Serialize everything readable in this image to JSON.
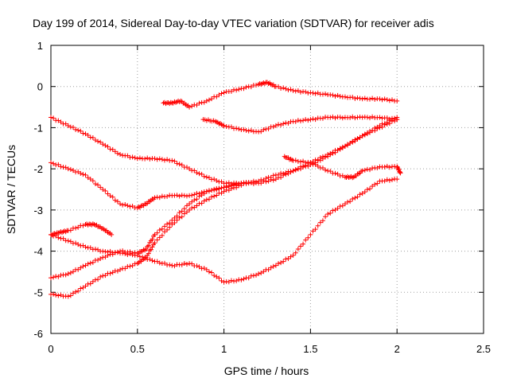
{
  "chart_data": {
    "type": "scatter",
    "title": "Day 199 of 2014, Sidereal Day-to-day VTEC variation (SDTVAR) for receiver adis",
    "xlabel": "GPS time / hours",
    "ylabel": "SDTVAR / TECUs",
    "xlim": [
      0,
      2.5
    ],
    "ylim": [
      -6,
      1
    ],
    "xticks": [
      0,
      0.5,
      1,
      1.5,
      2,
      2.5
    ],
    "xtick_labels": [
      "0",
      "0.5",
      "1",
      "1.5",
      "2",
      "2.5"
    ],
    "yticks": [
      -6,
      -5,
      -4,
      -3,
      -2,
      -1,
      0,
      1
    ],
    "ytick_labels": [
      "-6",
      "-5",
      "-4",
      "-3",
      "-2",
      "-1",
      "0",
      "1"
    ],
    "grid": true,
    "marker": "+",
    "color": "#ff0000",
    "series": [
      {
        "name": "s1",
        "points": [
          [
            0.0,
            -0.75
          ],
          [
            0.1,
            -0.95
          ],
          [
            0.2,
            -1.15
          ],
          [
            0.3,
            -1.4
          ],
          [
            0.4,
            -1.65
          ],
          [
            0.5,
            -1.75
          ],
          [
            0.6,
            -1.75
          ],
          [
            0.7,
            -1.8
          ],
          [
            0.8,
            -2.0
          ],
          [
            0.9,
            -2.2
          ],
          [
            1.0,
            -2.35
          ],
          [
            1.1,
            -2.35
          ]
        ]
      },
      {
        "name": "s2",
        "points": [
          [
            0.0,
            -1.85
          ],
          [
            0.1,
            -2.0
          ],
          [
            0.2,
            -2.15
          ],
          [
            0.3,
            -2.5
          ],
          [
            0.4,
            -2.85
          ],
          [
            0.5,
            -2.95
          ],
          [
            0.55,
            -2.85
          ],
          [
            0.6,
            -2.7
          ],
          [
            0.7,
            -2.65
          ],
          [
            0.8,
            -2.65
          ],
          [
            0.9,
            -2.55
          ],
          [
            1.0,
            -2.45
          ],
          [
            1.1,
            -2.35
          ],
          [
            1.2,
            -2.35
          ],
          [
            1.3,
            -2.25
          ],
          [
            1.4,
            -2.05
          ],
          [
            1.5,
            -1.9
          ],
          [
            1.6,
            -1.7
          ],
          [
            1.7,
            -1.45
          ],
          [
            1.8,
            -1.2
          ],
          [
            1.9,
            -1.0
          ],
          [
            2.0,
            -0.8
          ]
        ]
      },
      {
        "name": "s3",
        "points": [
          [
            0.0,
            -3.6
          ],
          [
            0.05,
            -3.55
          ],
          [
            0.1,
            -3.5
          ],
          [
            0.2,
            -3.35
          ],
          [
            0.25,
            -3.35
          ],
          [
            0.3,
            -3.45
          ],
          [
            0.35,
            -3.6
          ]
        ]
      },
      {
        "name": "s4",
        "points": [
          [
            0.0,
            -3.6
          ],
          [
            0.1,
            -3.75
          ],
          [
            0.2,
            -3.9
          ],
          [
            0.3,
            -4.0
          ],
          [
            0.4,
            -4.05
          ],
          [
            0.5,
            -4.1
          ],
          [
            0.6,
            -4.25
          ],
          [
            0.7,
            -4.35
          ],
          [
            0.8,
            -4.3
          ],
          [
            0.9,
            -4.45
          ],
          [
            1.0,
            -4.75
          ],
          [
            1.1,
            -4.7
          ],
          [
            1.2,
            -4.55
          ],
          [
            1.3,
            -4.35
          ],
          [
            1.4,
            -4.1
          ],
          [
            1.5,
            -3.6
          ],
          [
            1.6,
            -3.1
          ],
          [
            1.7,
            -2.85
          ],
          [
            1.8,
            -2.6
          ],
          [
            1.9,
            -2.3
          ],
          [
            2.0,
            -2.25
          ]
        ]
      },
      {
        "name": "s5",
        "points": [
          [
            0.0,
            -4.65
          ],
          [
            0.1,
            -4.55
          ],
          [
            0.2,
            -4.35
          ],
          [
            0.3,
            -4.15
          ],
          [
            0.4,
            -4.0
          ],
          [
            0.5,
            -4.05
          ],
          [
            0.55,
            -3.95
          ],
          [
            0.6,
            -3.6
          ],
          [
            0.7,
            -3.25
          ],
          [
            0.8,
            -2.85
          ],
          [
            0.9,
            -2.55
          ],
          [
            1.0,
            -2.45
          ],
          [
            1.1,
            -2.35
          ],
          [
            1.2,
            -2.3
          ],
          [
            1.3,
            -2.15
          ],
          [
            1.4,
            -2.05
          ],
          [
            1.5,
            -1.85
          ],
          [
            1.6,
            -1.65
          ],
          [
            1.7,
            -1.45
          ],
          [
            1.8,
            -1.2
          ],
          [
            1.9,
            -0.95
          ],
          [
            2.0,
            -0.75
          ]
        ]
      },
      {
        "name": "s6",
        "points": [
          [
            0.0,
            -5.05
          ],
          [
            0.1,
            -5.1
          ],
          [
            0.2,
            -4.85
          ],
          [
            0.3,
            -4.6
          ],
          [
            0.4,
            -4.45
          ],
          [
            0.5,
            -4.3
          ],
          [
            0.55,
            -4.15
          ],
          [
            0.6,
            -3.8
          ],
          [
            0.7,
            -3.35
          ],
          [
            0.8,
            -3.0
          ],
          [
            0.9,
            -2.75
          ],
          [
            1.0,
            -2.55
          ],
          [
            1.1,
            -2.4
          ]
        ]
      },
      {
        "name": "s7",
        "points": [
          [
            0.65,
            -0.4
          ],
          [
            0.7,
            -0.4
          ],
          [
            0.75,
            -0.35
          ],
          [
            0.8,
            -0.5
          ],
          [
            0.9,
            -0.35
          ],
          [
            1.0,
            -0.15
          ],
          [
            1.1,
            -0.05
          ],
          [
            1.2,
            0.05
          ],
          [
            1.25,
            0.1
          ],
          [
            1.3,
            0.0
          ],
          [
            1.4,
            -0.1
          ],
          [
            1.5,
            -0.15
          ],
          [
            1.6,
            -0.2
          ],
          [
            1.7,
            -0.25
          ],
          [
            1.8,
            -0.3
          ],
          [
            1.9,
            -0.3
          ],
          [
            2.0,
            -0.35
          ]
        ]
      },
      {
        "name": "s8",
        "points": [
          [
            0.88,
            -0.8
          ],
          [
            0.95,
            -0.85
          ],
          [
            1.0,
            -0.95
          ],
          [
            1.1,
            -1.05
          ],
          [
            1.2,
            -1.1
          ],
          [
            1.3,
            -0.95
          ],
          [
            1.4,
            -0.85
          ],
          [
            1.5,
            -0.8
          ],
          [
            1.6,
            -0.75
          ],
          [
            1.7,
            -0.75
          ],
          [
            1.8,
            -0.75
          ],
          [
            1.9,
            -0.75
          ],
          [
            2.0,
            -0.8
          ]
        ]
      },
      {
        "name": "s9",
        "points": [
          [
            1.35,
            -1.7
          ],
          [
            1.4,
            -1.8
          ],
          [
            1.5,
            -1.85
          ],
          [
            1.6,
            -2.05
          ],
          [
            1.7,
            -2.2
          ],
          [
            1.75,
            -2.2
          ],
          [
            1.8,
            -2.05
          ],
          [
            1.9,
            -1.95
          ],
          [
            2.0,
            -1.95
          ],
          [
            2.02,
            -2.1
          ]
        ]
      }
    ]
  }
}
